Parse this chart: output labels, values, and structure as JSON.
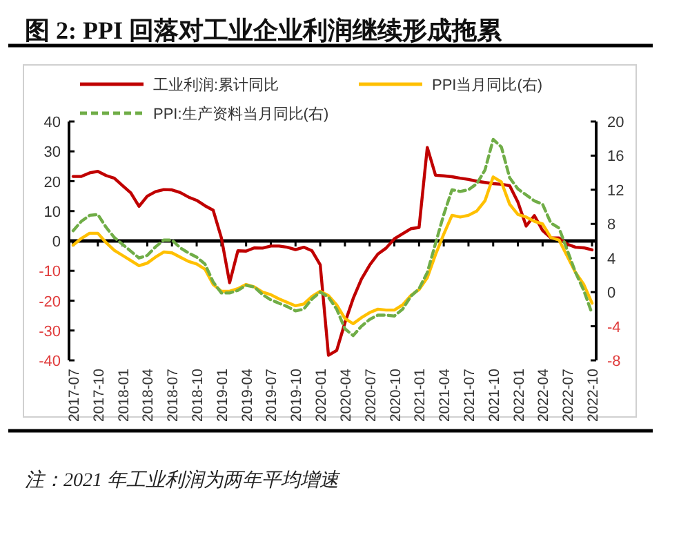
{
  "chart_data": {
    "type": "line",
    "title": "图 2:    PPI 回落对工业企业利润继续形成拖累",
    "categories": [
      "2017-07",
      null,
      null,
      "2017-10",
      null,
      null,
      "2018-01",
      null,
      null,
      "2018-04",
      null,
      null,
      "2018-07",
      null,
      null,
      "2018-10",
      null,
      null,
      "2019-01",
      null,
      null,
      "2019-04",
      null,
      null,
      "2019-07",
      null,
      null,
      "2019-10",
      null,
      null,
      "2020-01",
      null,
      null,
      "2020-04",
      null,
      null,
      "2020-07",
      null,
      null,
      "2020-10",
      null,
      null,
      "2021-01",
      null,
      null,
      "2021-04",
      null,
      null,
      "2021-07",
      null,
      null,
      "2021-10",
      null,
      null,
      "2022-01",
      null,
      null,
      "2022-04",
      null,
      null,
      "2022-07",
      null,
      null,
      "2022-10"
    ],
    "series": [
      {
        "name": "工业利润:累计同比",
        "color": "#c00000",
        "line_style": "solid",
        "values": [
          21.6,
          21.6,
          22.8,
          23.3,
          21.9,
          21.0,
          18.5,
          16.1,
          11.6,
          15.0,
          16.5,
          17.2,
          17.1,
          16.2,
          14.7,
          13.6,
          11.8,
          10.3,
          1.0,
          -14.0,
          -3.3,
          -3.4,
          -2.3,
          -2.4,
          -1.7,
          -1.7,
          -2.1,
          -2.9,
          -2.1,
          -3.3,
          -8.0,
          -38.3,
          -36.7,
          -27.4,
          -19.3,
          -12.8,
          -8.1,
          -4.4,
          -2.4,
          0.7,
          2.4,
          4.1,
          4.5,
          31.3,
          22.0,
          21.8,
          21.5,
          21.0,
          20.6,
          20.0,
          19.6,
          19.2,
          19.0,
          18.5,
          13.0,
          5.0,
          8.5,
          3.5,
          1.0,
          1.0,
          -1.1,
          -2.1,
          -2.3,
          -3.0
        ]
      },
      {
        "name": "PPI当月同比(右)",
        "color": "#ffc000",
        "axis": "y2",
        "line_style": "solid",
        "values": [
          5.5,
          6.3,
          6.9,
          6.9,
          5.8,
          4.9,
          4.3,
          3.7,
          3.1,
          3.4,
          4.1,
          4.7,
          4.6,
          4.1,
          3.6,
          3.3,
          2.7,
          0.9,
          0.1,
          0.1,
          0.4,
          0.9,
          0.6,
          0.0,
          -0.3,
          -0.8,
          -1.2,
          -1.6,
          -1.4,
          -0.5,
          0.1,
          -0.4,
          -1.5,
          -3.1,
          -3.7,
          -3.0,
          -2.4,
          -2.0,
          -2.1,
          -2.1,
          -1.5,
          -0.4,
          0.3,
          1.7,
          4.4,
          6.8,
          9.0,
          8.8,
          9.0,
          9.5,
          10.7,
          13.5,
          12.9,
          10.3,
          9.1,
          8.8,
          8.3,
          8.0,
          6.4,
          6.1,
          4.2,
          2.3,
          0.9,
          -1.3
        ]
      },
      {
        "name": "PPI:生产资料当月同比(右)",
        "color": "#70ad47",
        "axis": "y2",
        "line_style": "dashed",
        "values": [
          7.2,
          8.3,
          9.0,
          9.1,
          7.6,
          6.4,
          5.6,
          4.8,
          4.0,
          4.3,
          5.3,
          6.1,
          6.1,
          5.2,
          4.6,
          4.1,
          3.3,
          1.2,
          -0.1,
          -0.1,
          0.2,
          0.8,
          0.6,
          -0.3,
          -0.9,
          -1.3,
          -1.7,
          -2.2,
          -2.0,
          -0.8,
          0.0,
          -0.6,
          -2.0,
          -4.3,
          -5.1,
          -4.0,
          -3.2,
          -2.7,
          -2.7,
          -2.8,
          -2.0,
          -0.5,
          0.4,
          2.3,
          5.7,
          9.1,
          12.0,
          11.8,
          12.0,
          12.7,
          14.3,
          17.9,
          17.0,
          13.4,
          12.1,
          11.4,
          10.7,
          10.3,
          8.1,
          7.5,
          4.9,
          2.3,
          0.2,
          -2.5
        ]
      }
    ],
    "ylim": [
      -40,
      40
    ],
    "yticks": [
      -40,
      -30,
      -20,
      -10,
      0,
      10,
      20,
      30,
      40
    ],
    "y2lim": [
      -8,
      20
    ],
    "y2ticks": [
      -8,
      -4,
      0,
      4,
      8,
      12,
      16,
      20
    ],
    "legend": "top",
    "marker": "none",
    "annotations": [
      "注：2021 年工业利润为两年平均增速"
    ]
  }
}
